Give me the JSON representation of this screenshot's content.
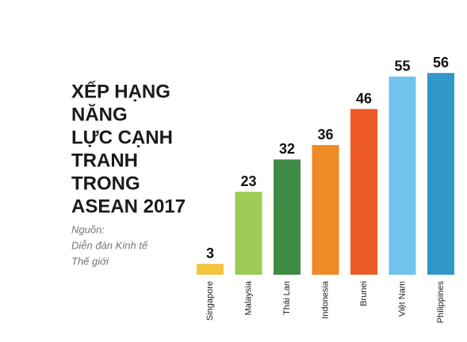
{
  "chart_data": {
    "type": "bar",
    "title_lines": [
      "XẾP HẠNG",
      "NĂNG",
      "LỰC CẠNH",
      "TRANH",
      "TRONG",
      "ASEAN 2017"
    ],
    "source_lines": [
      "Nguồn:",
      "Diễn đàn Kinh tế",
      "Thế giới"
    ],
    "categories": [
      "Singapore",
      "Malaysia",
      "Thái Lan",
      "Indonesia",
      "Brunei",
      "Việt Nam",
      "Philippines"
    ],
    "values": [
      3,
      23,
      32,
      36,
      46,
      55,
      56
    ],
    "colors": [
      "#f2c53d",
      "#9ccc55",
      "#3f8a44",
      "#f08a24",
      "#ee5a2a",
      "#6fc3ec",
      "#2f97c9"
    ]
  }
}
